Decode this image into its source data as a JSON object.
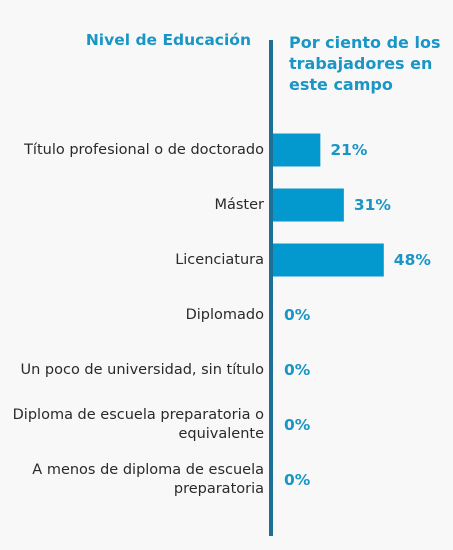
{
  "chart_data": {
    "type": "bar",
    "orientation": "horizontal",
    "category_header": "Nivel de Educación",
    "value_header": "Por ciento de los trabajadores en este campo",
    "categories": [
      "Título profesional o de doctorado",
      "Máster",
      "Licenciatura",
      "Diplomado",
      "Un poco de universidad, sin título",
      "Diploma de escuela preparatoria o equivalente",
      "A menos de diploma de escuela preparatoria"
    ],
    "values": [
      21,
      31,
      48,
      0,
      0,
      0,
      0
    ],
    "value_labels": [
      "21%",
      "31%",
      "48%",
      "0%",
      "0%",
      "0%",
      "0%"
    ],
    "bar_color": "#0399cf",
    "axis_color": "#1d6f93",
    "label_color": "#1a96c6",
    "grid": false
  }
}
